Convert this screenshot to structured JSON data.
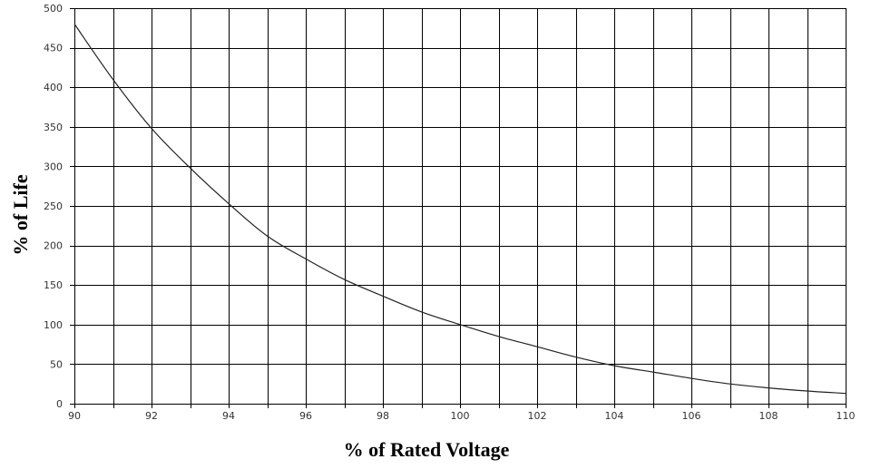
{
  "chart_data": {
    "type": "line",
    "title": "",
    "xlabel": "% of Rated Voltage",
    "ylabel": "% of Life",
    "xlim": [
      90,
      110
    ],
    "ylim": [
      0,
      500
    ],
    "x_ticks": [
      "90",
      "92",
      "94",
      "96",
      "98",
      "100",
      "102",
      "104",
      "106",
      "108",
      "110"
    ],
    "y_ticks": [
      "0",
      "50",
      "100",
      "150",
      "200",
      "250",
      "300",
      "350",
      "400",
      "450",
      "500"
    ],
    "x_grid_step": 1,
    "y_grid_step": 50,
    "grid": true,
    "series": [
      {
        "x": [
          90,
          91,
          92,
          93,
          94,
          95,
          96,
          97,
          98,
          99,
          100,
          101,
          102,
          103,
          104,
          105,
          106,
          107,
          108,
          109,
          110
        ],
        "y": [
          480,
          410,
          348,
          298,
          253,
          212,
          183,
          157,
          136,
          116,
          100,
          85,
          72,
          59,
          48,
          40,
          32,
          25,
          20,
          16,
          13
        ],
        "color": "#222222"
      }
    ]
  }
}
